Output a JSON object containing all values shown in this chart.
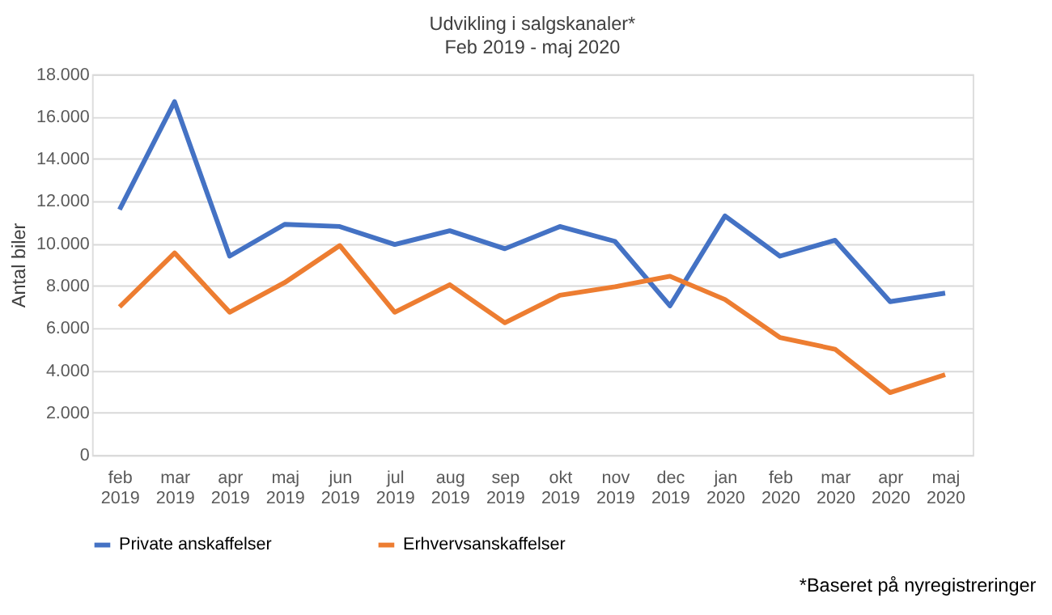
{
  "chart_data": {
    "type": "line",
    "title": "Udvikling i salgskanaler*",
    "subtitle": "Feb 2019 - maj 2020",
    "ylabel": "Antal biler",
    "categories": [
      "feb 2019",
      "mar 2019",
      "apr 2019",
      "maj 2019",
      "jun 2019",
      "jul 2019",
      "aug 2019",
      "sep 2019",
      "okt 2019",
      "nov 2019",
      "dec 2019",
      "jan 2020",
      "feb 2020",
      "mar 2020",
      "apr 2020",
      "maj 2020"
    ],
    "series": [
      {
        "name": "Private anskaffelser",
        "color": "#4472c4",
        "values": [
          11600,
          16700,
          9400,
          10900,
          10800,
          9950,
          10600,
          9750,
          10800,
          10100,
          7050,
          11300,
          9400,
          10150,
          7250,
          7650
        ]
      },
      {
        "name": "Erhvervsanskaffelser",
        "color": "#ed7d31",
        "values": [
          7000,
          9550,
          6750,
          8150,
          9900,
          6750,
          8050,
          6250,
          7550,
          7950,
          8450,
          7350,
          5550,
          5000,
          2950,
          3800
        ]
      }
    ],
    "ylim": [
      0,
      18000
    ],
    "yticks": [
      0,
      {
        "value": 2000,
        "label": "2.000"
      },
      {
        "value": 4000,
        "label": "4.000"
      },
      {
        "value": 6000,
        "label": "6.000"
      },
      {
        "value": 8000,
        "label": "8.000"
      },
      {
        "value": 10000,
        "label": "10.000"
      },
      {
        "value": 12000,
        "label": "12.000"
      },
      {
        "value": 14000,
        "label": "14.000"
      },
      {
        "value": 16000,
        "label": "16.000"
      },
      {
        "value": 18000,
        "label": "18.000"
      }
    ],
    "grid": "y",
    "legend": "bottom",
    "marker": "none",
    "line_style": "solid",
    "annotations": [
      "*Baseret på nyregistreringer"
    ]
  }
}
